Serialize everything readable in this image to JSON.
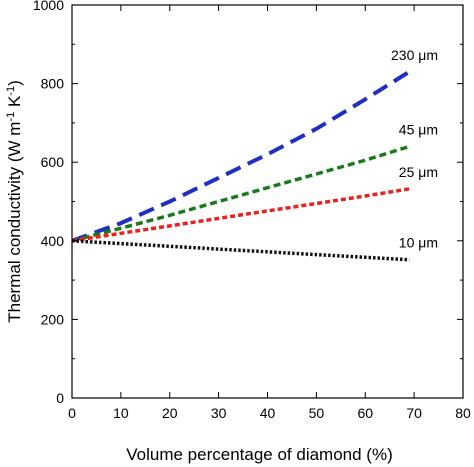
{
  "chart_data": {
    "type": "line",
    "title": "",
    "xlabel": "Volume percentage of diamond (%)",
    "ylabel": "Thermal conductivity (W m",
    "ylabel_sup1": "-1",
    "ylabel_mid": " K",
    "ylabel_sup2": "-1",
    "ylabel_end": ")",
    "xlim": [
      0,
      80
    ],
    "ylim": [
      0,
      1000
    ],
    "xticks": [
      0,
      10,
      20,
      30,
      40,
      50,
      60,
      70,
      80
    ],
    "yticks": [
      0,
      200,
      400,
      600,
      800,
      1000
    ],
    "grid": false,
    "legend": "inline labels at right end of curves",
    "series": [
      {
        "name": "230 μm",
        "color": "#1f2fbf",
        "style": "long-dash",
        "x": [
          0,
          10,
          20,
          30,
          40,
          50,
          60,
          69
        ],
        "y": [
          400,
          445,
          500,
          560,
          620,
          685,
          760,
          830
        ]
      },
      {
        "name": "45 μm",
        "color": "#1a7a1a",
        "style": "dash",
        "x": [
          0,
          10,
          20,
          30,
          40,
          50,
          60,
          69
        ],
        "y": [
          400,
          432,
          465,
          500,
          535,
          570,
          605,
          640
        ]
      },
      {
        "name": "25 μm",
        "color": "#e8231e",
        "style": "short-dash",
        "x": [
          0,
          10,
          20,
          30,
          40,
          50,
          60,
          69
        ],
        "y": [
          400,
          419,
          438,
          457,
          476,
          495,
          514,
          532
        ]
      },
      {
        "name": "10 μm",
        "color": "#111111",
        "style": "dot",
        "x": [
          0,
          10,
          20,
          30,
          40,
          50,
          60,
          69
        ],
        "y": [
          400,
          393,
          386,
          379,
          372,
          365,
          358,
          352
        ]
      }
    ]
  }
}
